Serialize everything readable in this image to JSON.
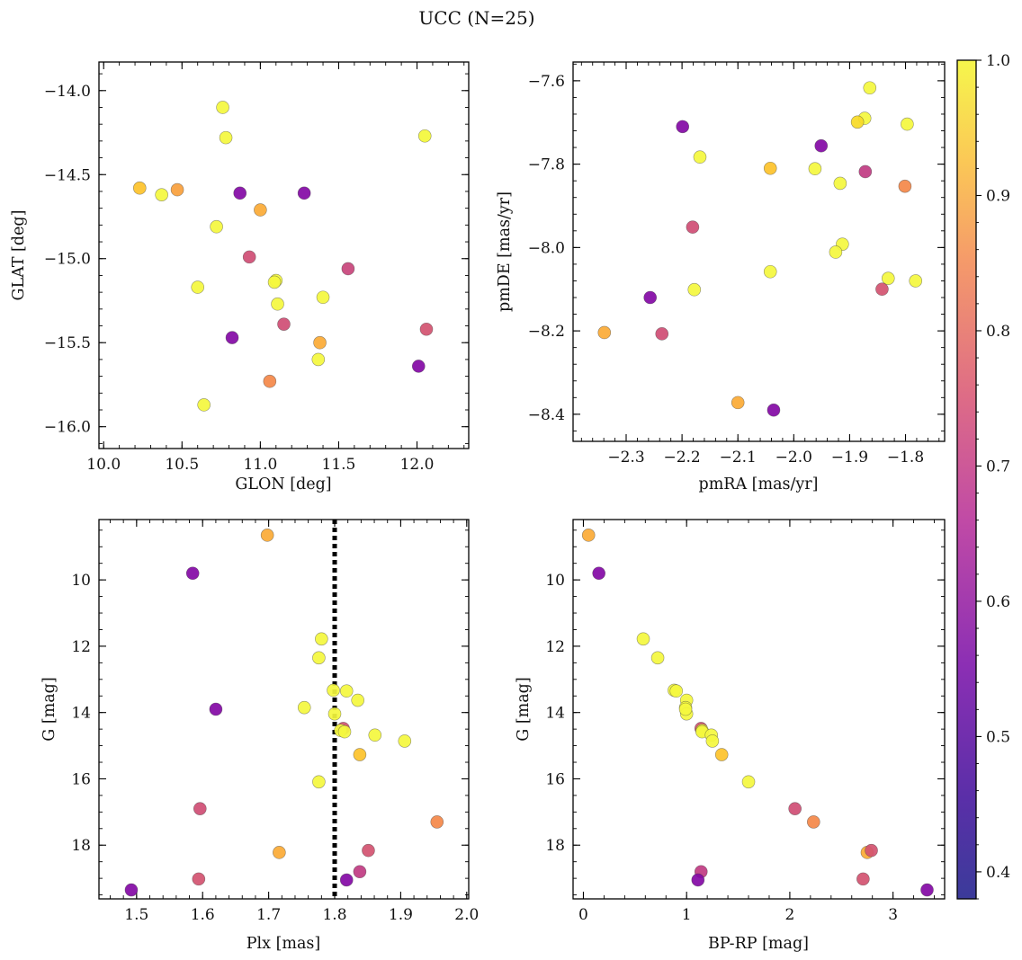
{
  "figure": {
    "title": "UCC (N=25)"
  },
  "colorbar": {
    "min": 0.38,
    "max": 1.0,
    "ticks": [
      0.4,
      0.5,
      0.6,
      0.7,
      0.8,
      0.9,
      1.0
    ],
    "tick_labels": [
      "0.4",
      "0.5",
      "0.6",
      "0.7",
      "0.8",
      "0.9",
      "1.0"
    ],
    "colormap": "plasma"
  },
  "chart_data": [
    {
      "type": "scatter",
      "title": "",
      "xlabel": "GLON [deg]",
      "ylabel": "GLAT [deg]",
      "xlim": [
        9.97,
        12.33
      ],
      "ylim": [
        -16.13,
        -13.83
      ],
      "xticks": [
        10.0,
        10.5,
        11.0,
        11.5,
        12.0
      ],
      "xtick_labels": [
        "10.0",
        "10.5",
        "11.0",
        "11.5",
        "12.0"
      ],
      "yticks": [
        -16.0,
        -15.5,
        -15.0,
        -14.5,
        -14.0
      ],
      "ytick_labels": [
        "−16.0",
        "−15.5",
        "−15.0",
        "−14.5",
        "−14.0"
      ],
      "x": [
        10.76,
        10.78,
        12.05,
        10.23,
        10.37,
        10.47,
        10.87,
        11.28,
        11.0,
        10.72,
        10.93,
        11.1,
        11.09,
        10.6,
        11.56,
        11.4,
        11.11,
        11.15,
        12.06,
        10.82,
        11.38,
        11.37,
        12.01,
        11.06,
        10.64
      ],
      "y": [
        -14.1,
        -14.28,
        -14.27,
        -14.58,
        -14.62,
        -14.59,
        -14.61,
        -14.61,
        -14.71,
        -14.81,
        -14.99,
        -15.13,
        -15.14,
        -15.17,
        -15.06,
        -15.23,
        -15.27,
        -15.39,
        -15.42,
        -15.47,
        -15.5,
        -15.6,
        -15.64,
        -15.73,
        -15.87
      ],
      "c": [
        0.97,
        0.97,
        0.96,
        0.82,
        0.97,
        0.76,
        0.42,
        0.42,
        0.78,
        0.97,
        0.59,
        0.97,
        0.97,
        0.97,
        0.57,
        0.97,
        0.97,
        0.59,
        0.6,
        0.42,
        0.78,
        0.97,
        0.42,
        0.72,
        0.97
      ],
      "vline": null
    },
    {
      "type": "scatter",
      "title": "",
      "xlabel": "pmRA [mas/yr]",
      "ylabel": "pmDE [mas/yr]",
      "xlim": [
        -2.395,
        -1.73
      ],
      "ylim": [
        -8.465,
        -7.555
      ],
      "xticks": [
        -2.3,
        -2.2,
        -2.1,
        -2.0,
        -1.9,
        -1.8
      ],
      "xtick_labels": [
        "−2.3",
        "−2.2",
        "−2.1",
        "−2.0",
        "−1.9",
        "−1.8"
      ],
      "yticks": [
        -8.4,
        -8.2,
        -8.0,
        -7.8,
        -7.6
      ],
      "ytick_labels": [
        "−8.4",
        "−8.2",
        "−8.0",
        "−7.8",
        "−7.6"
      ],
      "x": [
        -1.864,
        -1.873,
        -1.886,
        -1.797,
        -2.199,
        -1.951,
        -2.168,
        -2.042,
        -1.962,
        -1.872,
        -1.917,
        -1.801,
        -2.181,
        -1.913,
        -1.925,
        -2.042,
        -1.831,
        -1.782,
        -2.178,
        -1.842,
        -2.257,
        -2.339,
        -2.236,
        -2.1,
        -2.036
      ],
      "y": [
        -7.617,
        -7.69,
        -7.699,
        -7.704,
        -7.71,
        -7.756,
        -7.783,
        -7.81,
        -7.811,
        -7.818,
        -7.846,
        -7.853,
        -7.951,
        -7.992,
        -8.011,
        -8.058,
        -8.074,
        -8.08,
        -8.101,
        -8.1,
        -8.12,
        -8.204,
        -8.207,
        -8.372,
        -8.39
      ],
      "c": [
        0.97,
        0.97,
        0.86,
        0.97,
        0.42,
        0.42,
        0.97,
        0.82,
        0.97,
        0.55,
        0.97,
        0.72,
        0.59,
        0.97,
        0.97,
        0.97,
        0.97,
        0.97,
        0.97,
        0.6,
        0.42,
        0.78,
        0.59,
        0.78,
        0.42
      ],
      "vline": null
    },
    {
      "type": "scatter",
      "title": "",
      "xlabel": "Plx [mas]",
      "ylabel": "G [mag]",
      "xlim": [
        1.443,
        2.003
      ],
      "ylim": [
        19.62,
        8.18
      ],
      "xticks": [
        1.5,
        1.6,
        1.7,
        1.8,
        1.9,
        2.0
      ],
      "xtick_labels": [
        "1.5",
        "1.6",
        "1.7",
        "1.8",
        "1.9",
        "2.0"
      ],
      "yticks": [
        10,
        12,
        14,
        16,
        18
      ],
      "ytick_labels": [
        "10",
        "12",
        "14",
        "16",
        "18"
      ],
      "x": [
        1.698,
        1.585,
        1.78,
        1.776,
        1.798,
        1.818,
        1.835,
        1.754,
        1.62,
        1.8,
        1.813,
        1.809,
        1.815,
        1.861,
        1.906,
        1.838,
        1.776,
        1.596,
        1.955,
        1.716,
        1.851,
        1.838,
        1.818,
        1.594,
        1.492
      ],
      "y": [
        8.65,
        9.8,
        11.78,
        12.35,
        13.33,
        13.35,
        13.63,
        13.85,
        13.9,
        14.04,
        14.48,
        14.54,
        14.58,
        14.68,
        14.86,
        15.27,
        16.09,
        16.9,
        17.3,
        18.22,
        18.16,
        18.8,
        19.05,
        19.02,
        19.35
      ],
      "c": [
        0.78,
        0.42,
        0.97,
        0.97,
        0.97,
        0.97,
        0.97,
        0.97,
        0.42,
        0.97,
        0.6,
        0.97,
        0.97,
        0.97,
        0.97,
        0.82,
        0.97,
        0.59,
        0.72,
        0.78,
        0.6,
        0.55,
        0.42,
        0.6,
        0.42
      ],
      "vline": 1.8
    },
    {
      "type": "scatter",
      "title": "",
      "xlabel": "BP-RP [mag]",
      "ylabel": "G [mag]",
      "xlim": [
        -0.1,
        3.5
      ],
      "ylim": [
        19.62,
        8.18
      ],
      "xticks": [
        0,
        1,
        2,
        3
      ],
      "xtick_labels": [
        "0",
        "1",
        "2",
        "3"
      ],
      "yticks": [
        10,
        12,
        14,
        16,
        18
      ],
      "ytick_labels": [
        "10",
        "12",
        "14",
        "16",
        "18"
      ],
      "x": [
        0.05,
        0.15,
        0.58,
        0.72,
        0.88,
        0.9,
        1.0,
        0.99,
        1.0,
        1.14,
        1.15,
        1.15,
        1.24,
        1.25,
        1.34,
        1.6,
        2.05,
        2.23,
        2.75,
        2.79,
        2.71,
        1.14,
        1.11,
        3.33,
        0.99
      ],
      "y": [
        8.65,
        9.8,
        11.78,
        12.35,
        13.33,
        13.35,
        13.63,
        13.85,
        14.04,
        14.48,
        14.54,
        14.58,
        14.68,
        14.86,
        15.27,
        16.09,
        16.9,
        17.3,
        18.22,
        18.16,
        19.02,
        18.8,
        19.05,
        19.35,
        13.9
      ],
      "c": [
        0.78,
        0.42,
        0.97,
        0.97,
        0.97,
        0.97,
        0.97,
        0.97,
        0.97,
        0.6,
        0.97,
        0.97,
        0.97,
        0.97,
        0.82,
        0.97,
        0.59,
        0.72,
        0.78,
        0.6,
        0.6,
        0.55,
        0.42,
        0.42,
        0.97
      ],
      "vline": null
    }
  ]
}
